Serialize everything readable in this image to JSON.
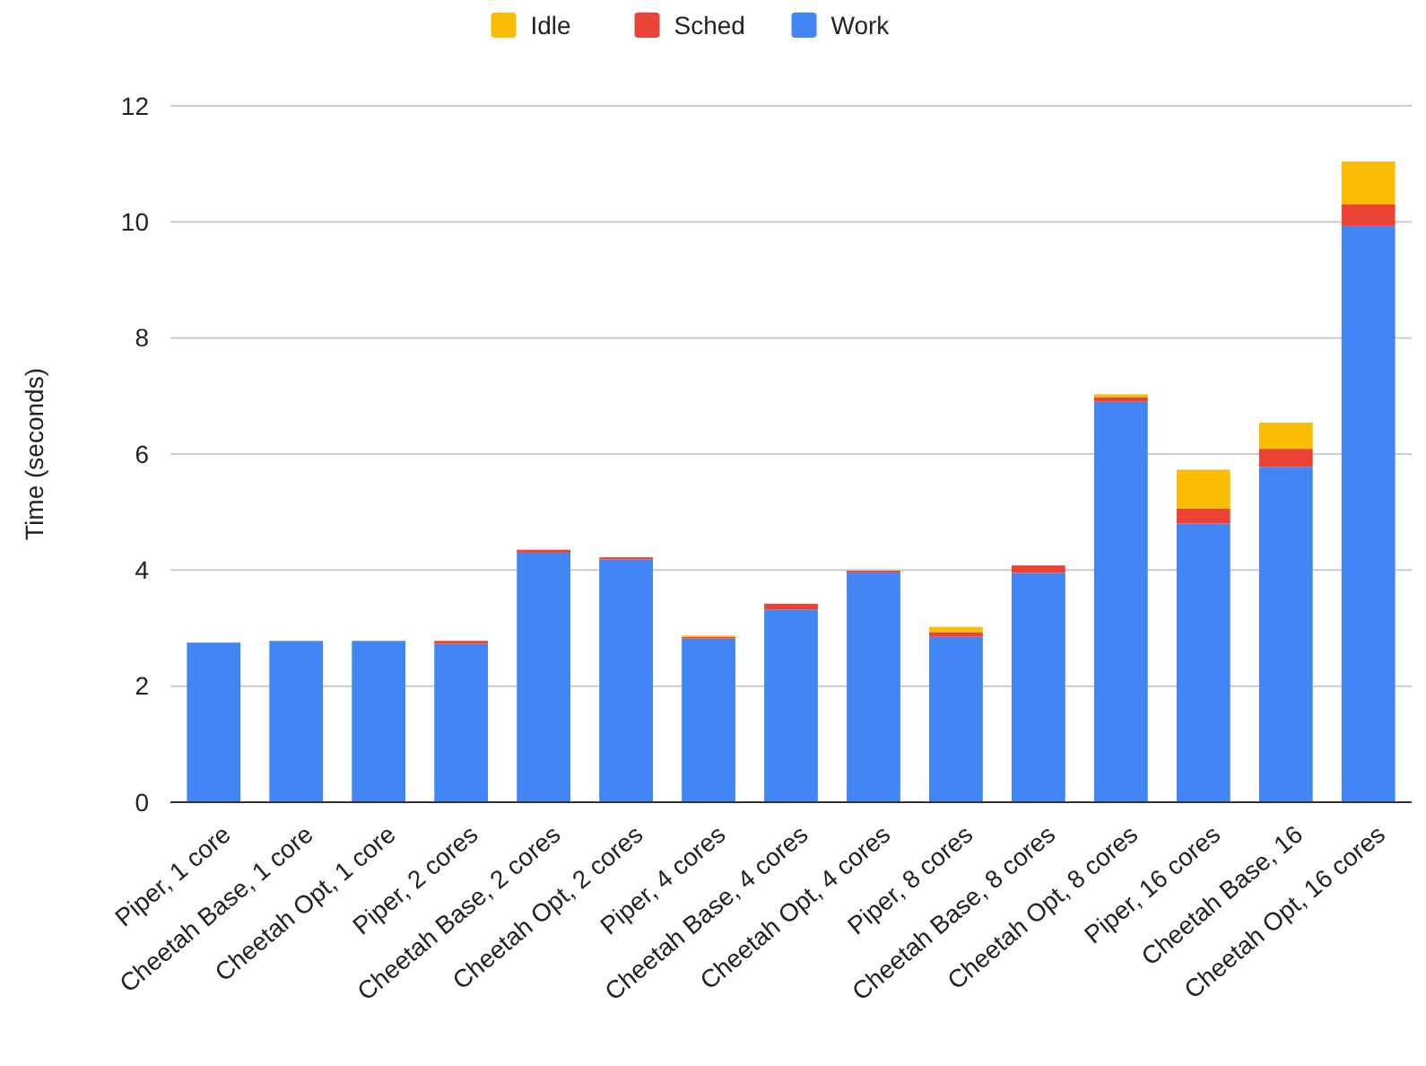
{
  "chart_data": {
    "type": "bar",
    "stacked": true,
    "ylabel": "Time (seconds)",
    "categories": [
      "Piper, 1 core",
      "Cheetah Base, 1 core",
      "Cheetah Opt, 1 core",
      "Piper, 2 cores",
      "Cheetah Base, 2 cores",
      "Cheetah Opt, 2 cores",
      "Piper, 4 cores",
      "Cheetah Base, 4 cores",
      "Cheetah Opt, 4 cores",
      "Piper, 8 cores",
      "Cheetah Base, 8 cores",
      "Cheetah Opt, 8 cores",
      "Piper, 16 cores",
      "Cheetah Base, 16",
      "Cheetah Opt, 16 cores"
    ],
    "series": [
      {
        "name": "Work",
        "color": "#4285f4",
        "values": [
          2.75,
          2.78,
          2.78,
          2.73,
          4.3,
          4.18,
          2.82,
          3.32,
          3.96,
          2.85,
          3.95,
          6.9,
          4.8,
          5.78,
          9.93
        ]
      },
      {
        "name": "Sched",
        "color": "#ea4335",
        "values": [
          0,
          0,
          0,
          0.05,
          0.05,
          0.04,
          0.03,
          0.1,
          0.03,
          0.08,
          0.13,
          0.08,
          0.26,
          0.31,
          0.37
        ]
      },
      {
        "name": "Idle",
        "color": "#fbbc04",
        "values": [
          0,
          0,
          0,
          0,
          0,
          0,
          0.02,
          0,
          0,
          0.09,
          0,
          0.05,
          0.67,
          0.45,
          0.74
        ]
      }
    ],
    "ylim": [
      0,
      12
    ],
    "yticks": [
      0,
      2,
      4,
      6,
      8,
      10,
      12
    ],
    "grid": "y",
    "legend": "top"
  }
}
